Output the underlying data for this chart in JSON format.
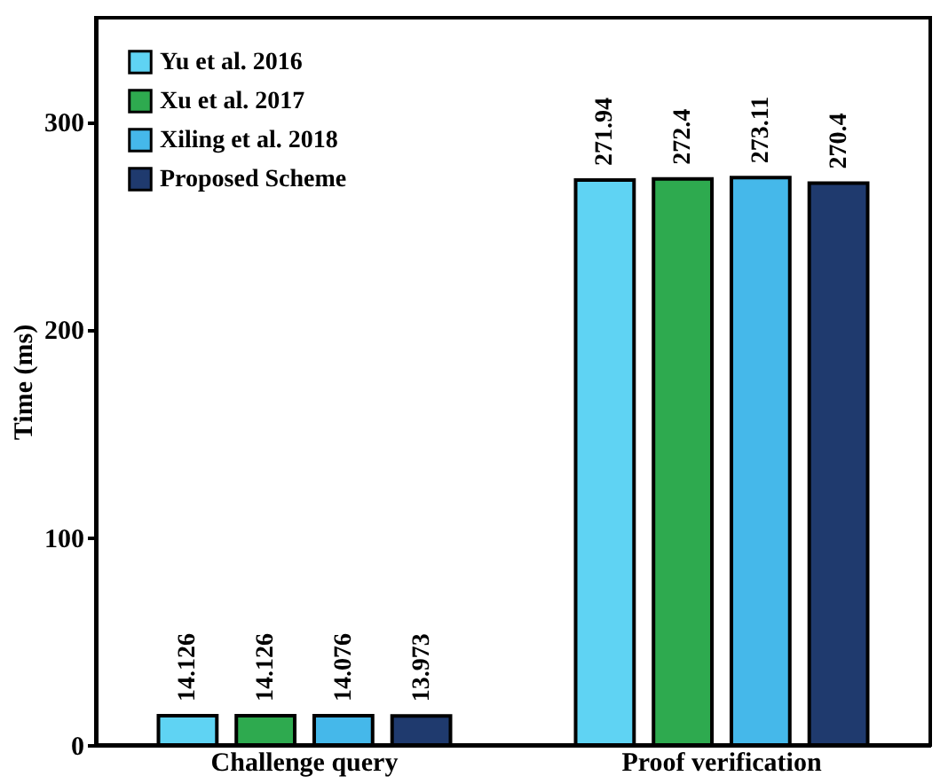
{
  "chart_data": {
    "type": "bar",
    "ylabel": "Time (ms)",
    "categories": [
      "Challenge query",
      "Proof verification"
    ],
    "series": [
      {
        "name": "Yu et al. 2016",
        "color": "#5fd3f3",
        "values": [
          14.126,
          271.94
        ]
      },
      {
        "name": "Xu et al. 2017",
        "color": "#2eaa4f",
        "values": [
          14.126,
          272.4
        ]
      },
      {
        "name": "Xiling et al. 2018",
        "color": "#45b8ea",
        "values": [
          14.076,
          273.11
        ]
      },
      {
        "name": "Proposed Scheme",
        "color": "#1f3a6e",
        "values": [
          13.973,
          270.4
        ]
      }
    ],
    "ylim": [
      0,
      350
    ],
    "yticks": [
      0,
      100,
      200,
      300
    ],
    "data_labels": true,
    "grid": false,
    "legend": "top left"
  }
}
